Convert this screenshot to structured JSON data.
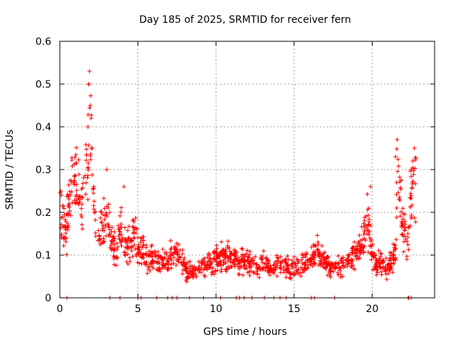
{
  "chart_data": {
    "type": "scatter",
    "title": "Day 185 of 2025, SRMTID for receiver fern",
    "xlabel": "GPS time / hours",
    "ylabel": "SRMTID / TECUs",
    "xlim": [
      0,
      24
    ],
    "ylim": [
      0,
      0.6
    ],
    "x_ticks": [
      0,
      5,
      10,
      15,
      20
    ],
    "y_ticks": [
      0,
      0.1,
      0.2,
      0.3,
      0.4,
      0.5,
      0.6
    ],
    "y_tick_labels": [
      "0",
      "0.1",
      "0.2",
      "0.3",
      "0.4",
      "0.5",
      "0.6"
    ],
    "grid": true,
    "marker": "+",
    "series": [
      {
        "name": "SRMTID",
        "color": "#ff0000",
        "profile_x": [
          0.0,
          0.2,
          0.4,
          0.6,
          0.8,
          1.0,
          1.2,
          1.4,
          1.6,
          1.8,
          1.9,
          2.0,
          2.1,
          2.3,
          2.5,
          2.7,
          2.9,
          3.1,
          3.3,
          3.5,
          3.8,
          4.0,
          4.2,
          4.5,
          4.8,
          5.0,
          5.3,
          5.6,
          6.0,
          6.5,
          7.0,
          7.5,
          8.0,
          8.5,
          9.0,
          9.5,
          10.0,
          10.5,
          11.0,
          11.5,
          12.0,
          12.5,
          13.0,
          13.5,
          14.0,
          14.5,
          15.0,
          15.5,
          16.0,
          16.5,
          17.0,
          17.5,
          18.0,
          18.5,
          19.0,
          19.3,
          19.6,
          19.8,
          20.0,
          20.2,
          20.5,
          21.0,
          21.3,
          21.5,
          21.6,
          21.8,
          22.0,
          22.2,
          22.4,
          22.6,
          22.8
        ],
        "profile_y": [
          0.19,
          0.17,
          0.16,
          0.22,
          0.26,
          0.27,
          0.23,
          0.22,
          0.27,
          0.34,
          0.39,
          0.38,
          0.28,
          0.17,
          0.15,
          0.16,
          0.19,
          0.18,
          0.13,
          0.11,
          0.14,
          0.16,
          0.13,
          0.12,
          0.15,
          0.11,
          0.12,
          0.09,
          0.09,
          0.08,
          0.09,
          0.11,
          0.07,
          0.06,
          0.07,
          0.08,
          0.09,
          0.1,
          0.09,
          0.08,
          0.09,
          0.07,
          0.08,
          0.07,
          0.08,
          0.07,
          0.07,
          0.08,
          0.09,
          0.11,
          0.08,
          0.07,
          0.08,
          0.09,
          0.11,
          0.13,
          0.16,
          0.18,
          0.1,
          0.08,
          0.08,
          0.07,
          0.09,
          0.1,
          0.3,
          0.25,
          0.17,
          0.12,
          0.2,
          0.26,
          0.28
        ],
        "n_points": 1400,
        "spread_fraction": 0.3
      }
    ],
    "peaks": [
      {
        "x": 1.9,
        "y": 0.53
      },
      {
        "x": 1.85,
        "y": 0.5
      },
      {
        "x": 1.95,
        "y": 0.45
      },
      {
        "x": 2.0,
        "y": 0.42
      },
      {
        "x": 1.8,
        "y": 0.4
      },
      {
        "x": 21.6,
        "y": 0.37
      },
      {
        "x": 21.5,
        "y": 0.33
      },
      {
        "x": 22.7,
        "y": 0.35
      },
      {
        "x": 22.6,
        "y": 0.32
      },
      {
        "x": 3.0,
        "y": 0.3
      },
      {
        "x": 4.1,
        "y": 0.26
      },
      {
        "x": 19.9,
        "y": 0.26
      },
      {
        "x": 0.1,
        "y": 0.24
      }
    ],
    "zero_points_x": [
      0.45,
      3.2,
      3.85,
      5.0,
      5.2,
      6.2,
      6.9,
      7.2,
      7.5,
      8.3,
      9.2,
      10.3,
      11.3,
      11.5,
      11.8,
      12.3,
      13.1,
      13.7,
      14.1,
      14.5,
      16.1,
      16.3,
      17.6,
      22.3,
      22.35,
      22.5
    ]
  }
}
